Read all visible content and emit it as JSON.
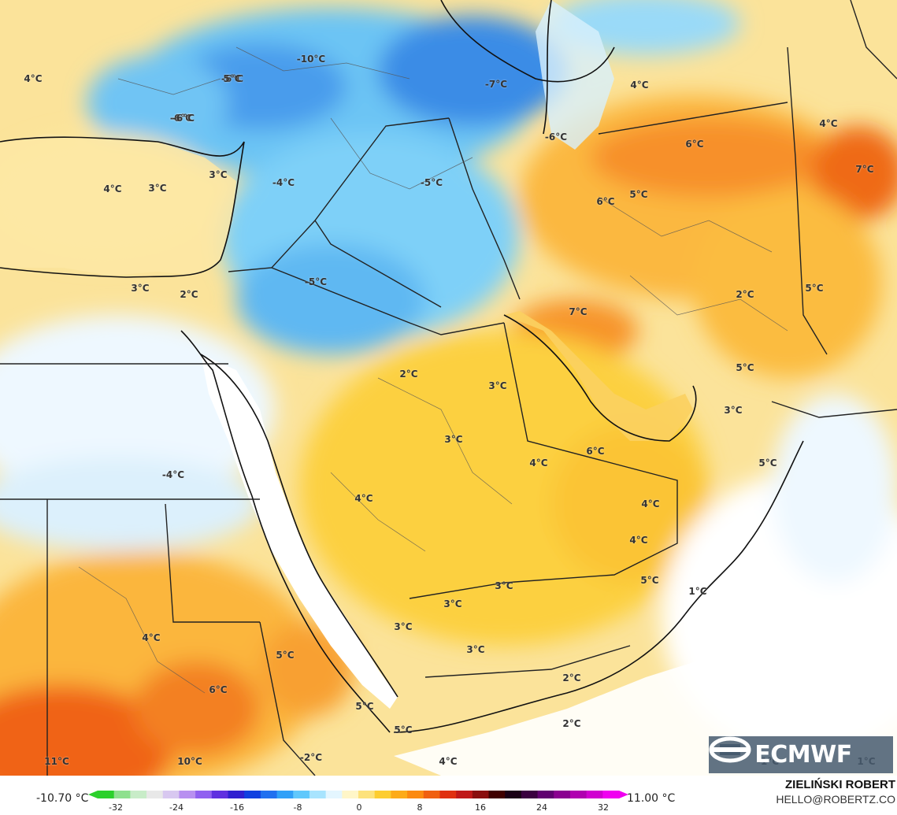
{
  "map": {
    "labels": [
      {
        "text": "-10°C"
      },
      {
        "text": "-6°C"
      },
      {
        "text": "-4°C"
      },
      {
        "text": "4°C"
      },
      {
        "text": "5°C"
      },
      {
        "text": "-6°C"
      },
      {
        "text": "-7°C"
      },
      {
        "text": "4°C"
      },
      {
        "text": "4°C"
      },
      {
        "text": "-6°C"
      },
      {
        "text": "-6°C"
      },
      {
        "text": "6°C"
      },
      {
        "text": "7°C"
      },
      {
        "text": "4°C"
      },
      {
        "text": "3°C"
      },
      {
        "text": "3°C"
      },
      {
        "text": "-4°C"
      },
      {
        "text": "-5°C"
      },
      {
        "text": "5°C"
      },
      {
        "text": "6°C"
      },
      {
        "text": "3°C"
      },
      {
        "text": "2°C"
      },
      {
        "text": "-5°C"
      },
      {
        "text": "7°C"
      },
      {
        "text": "2°C"
      },
      {
        "text": "5°C"
      },
      {
        "text": "2°C"
      },
      {
        "text": "3°C"
      },
      {
        "text": "5°C"
      },
      {
        "text": "3°C"
      },
      {
        "text": "3°C"
      },
      {
        "text": "6°C"
      },
      {
        "text": "4°C"
      },
      {
        "text": "5°C"
      },
      {
        "text": "4°C"
      },
      {
        "text": "-4°C"
      },
      {
        "text": "4°C"
      },
      {
        "text": "4°C"
      },
      {
        "text": "3°C"
      },
      {
        "text": "5°C"
      },
      {
        "text": "1°C"
      },
      {
        "text": "3°C"
      },
      {
        "text": "3°C"
      },
      {
        "text": "3°C"
      },
      {
        "text": "4°C"
      },
      {
        "text": "5°C"
      },
      {
        "text": "6°C"
      },
      {
        "text": "2°C"
      },
      {
        "text": "5°C"
      },
      {
        "text": "2°C"
      },
      {
        "text": "5°C"
      },
      {
        "text": "11°C"
      },
      {
        "text": "10°C"
      },
      {
        "text": "-2°C"
      },
      {
        "text": "4°C"
      },
      {
        "text": "-1°C"
      },
      {
        "text": "1°C"
      }
    ]
  },
  "logo": {
    "text": "ECMWF",
    "icon": "ecmwf-logo-icon"
  },
  "legend": {
    "min": "-10.70 °C",
    "max": "11.00 °C",
    "ticks": [
      "-32",
      "-24",
      "-16",
      "-8",
      "0",
      "8",
      "16",
      "24",
      "32"
    ],
    "colors": [
      "#2bd02b",
      "#8ee08e",
      "#c8ecc8",
      "#e8e8e8",
      "#d8c8f0",
      "#b890f0",
      "#9060f0",
      "#6030e0",
      "#3020d0",
      "#1040e0",
      "#2070f0",
      "#30a0f8",
      "#60c8fc",
      "#a8e4fe",
      "#e4f6ff",
      "#fff6c8",
      "#fde27c",
      "#fdcd30",
      "#fdab18",
      "#fc8a10",
      "#f06010",
      "#e03010",
      "#c01818",
      "#8a0e0e",
      "#400000",
      "#1a0016",
      "#3a0040",
      "#600070",
      "#8a0090",
      "#b000b0",
      "#d000d0",
      "#f000f0"
    ]
  },
  "credits": {
    "author": "ZIELIŃSKI ROBERT",
    "email": "HELLO@ROBERTZ.CO"
  }
}
